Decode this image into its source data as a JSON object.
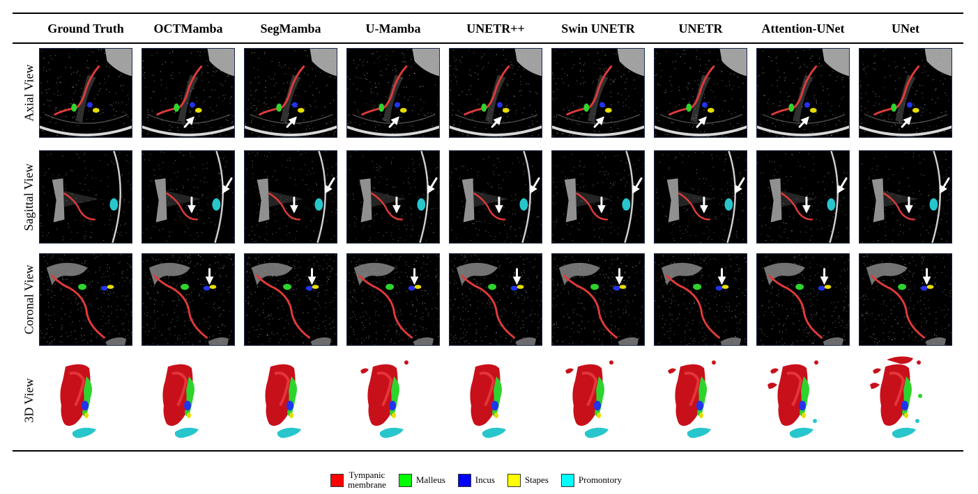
{
  "methods": [
    "Ground Truth",
    "OCTMamba",
    "SegMamba",
    "U-Mamba",
    "UNETR++",
    "Swin UNETR",
    "UNETR",
    "Attention-UNet",
    "UNet"
  ],
  "views": [
    "Axial View",
    "Sagittal View",
    "Coronal View",
    "3D View"
  ],
  "legend": [
    {
      "label": "Tympanic membrane",
      "line1": "Tympanic",
      "line2": "membrane",
      "color": "#ff0000"
    },
    {
      "label": "Malleus",
      "color": "#00ff00"
    },
    {
      "label": "Incus",
      "color": "#0000ff"
    },
    {
      "label": "Stapes",
      "color": "#ffff00"
    },
    {
      "label": "Promontory",
      "color": "#00ffff"
    }
  ],
  "colors": {
    "tympanic_membrane": "#e03a3a",
    "malleus": "#2ed42e",
    "incus": "#2233ee",
    "stapes": "#e6dd00",
    "promontory": "#27c6cc",
    "arrow": "#ffffff",
    "render_red": "#c8101a"
  },
  "figure_content": {
    "panel_kind": "OCT B-scan with overlaid segmentation",
    "arrow_indicator": "white arrow marks region of differing prediction",
    "arrows_present_in_columns": [
      "OCTMamba",
      "SegMamba",
      "U-Mamba",
      "UNETR++",
      "Swin UNETR",
      "UNETR",
      "Attention-UNet",
      "UNet"
    ],
    "render_noise_level": [
      0,
      0,
      0,
      1,
      0,
      1,
      1,
      2,
      3
    ]
  }
}
